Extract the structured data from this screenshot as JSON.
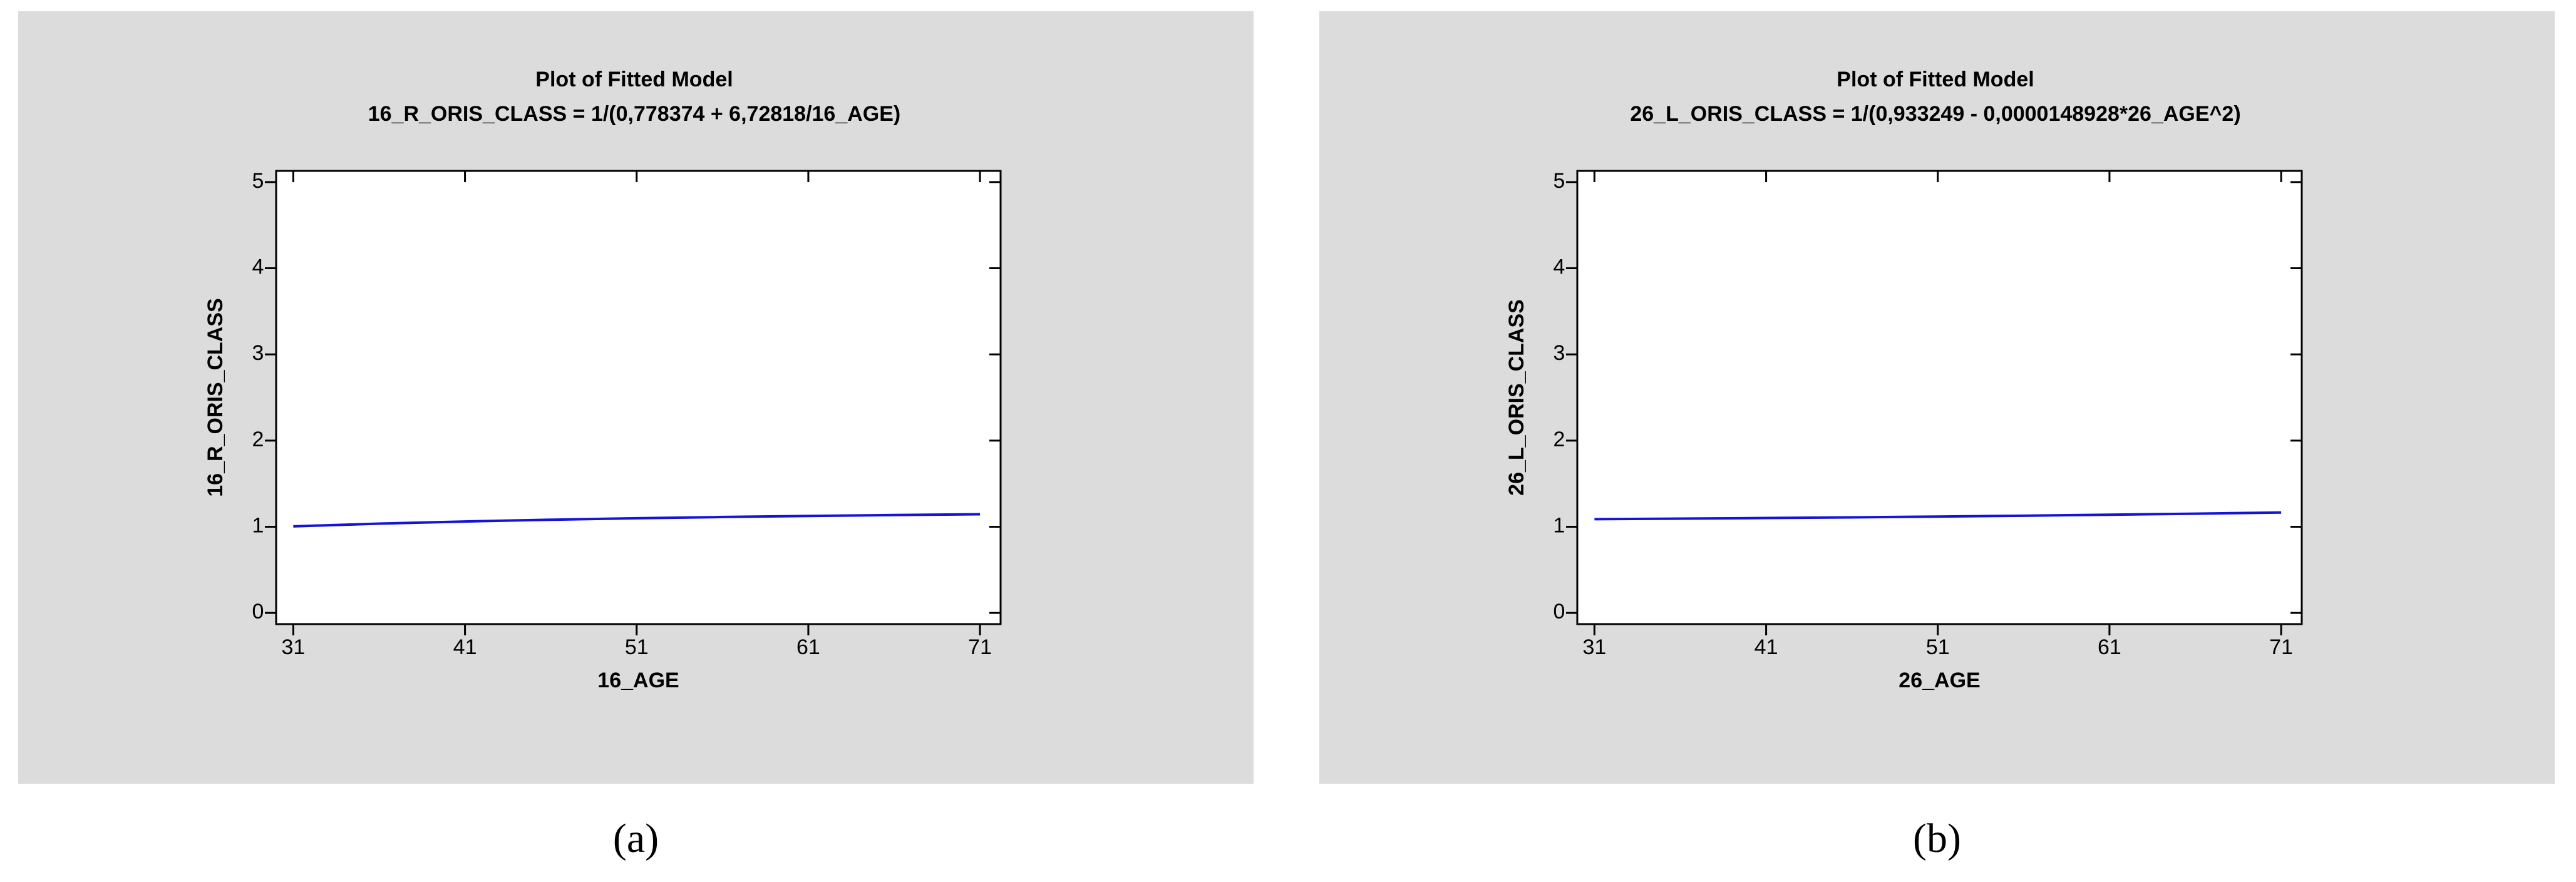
{
  "chart_data": [
    {
      "type": "line",
      "title": "Plot of Fitted Model",
      "subtitle": "16_R_ORIS_CLASS = 1/(0,778374 + 6,72818/16_AGE)",
      "x_label": "16_AGE",
      "y_label": "16_R_ORIS_CLASS",
      "panel_label": "(a)",
      "x": [
        31,
        36,
        41,
        46,
        51,
        56,
        61,
        66,
        71
      ],
      "series": [
        {
          "color": "#1414d8",
          "values": [
            1.0046,
            1.036,
            1.061,
            1.0815,
            1.0985,
            1.1129,
            1.1253,
            1.136,
            1.1453
          ]
        }
      ],
      "xlim": [
        30,
        72.2
      ],
      "ylim": [
        -0.13,
        5.13
      ],
      "xticks": [
        31,
        41,
        51,
        61,
        71
      ],
      "yticks": [
        0,
        1,
        2,
        3,
        4,
        5
      ]
    },
    {
      "type": "line",
      "title": "Plot of Fitted Model",
      "subtitle": "26_L_ORIS_CLASS = 1/(0,933249 - 0,0000148928*26_AGE^2)",
      "x_label": "26_AGE",
      "y_label": "26_L_ORIS_CLASS",
      "panel_label": "(b)",
      "x": [
        31,
        36,
        41,
        46,
        51,
        56,
        61,
        66,
        71
      ],
      "series": [
        {
          "color": "#1414d8",
          "values": [
            1.0882,
            1.0942,
            1.1011,
            1.109,
            1.1179,
            1.128,
            1.1392,
            1.1516,
            1.1653
          ]
        }
      ],
      "xlim": [
        30,
        72.2
      ],
      "ylim": [
        -0.13,
        5.13
      ],
      "xticks": [
        31,
        41,
        51,
        61,
        71
      ],
      "yticks": [
        0,
        1,
        2,
        3,
        4,
        5
      ]
    }
  ]
}
